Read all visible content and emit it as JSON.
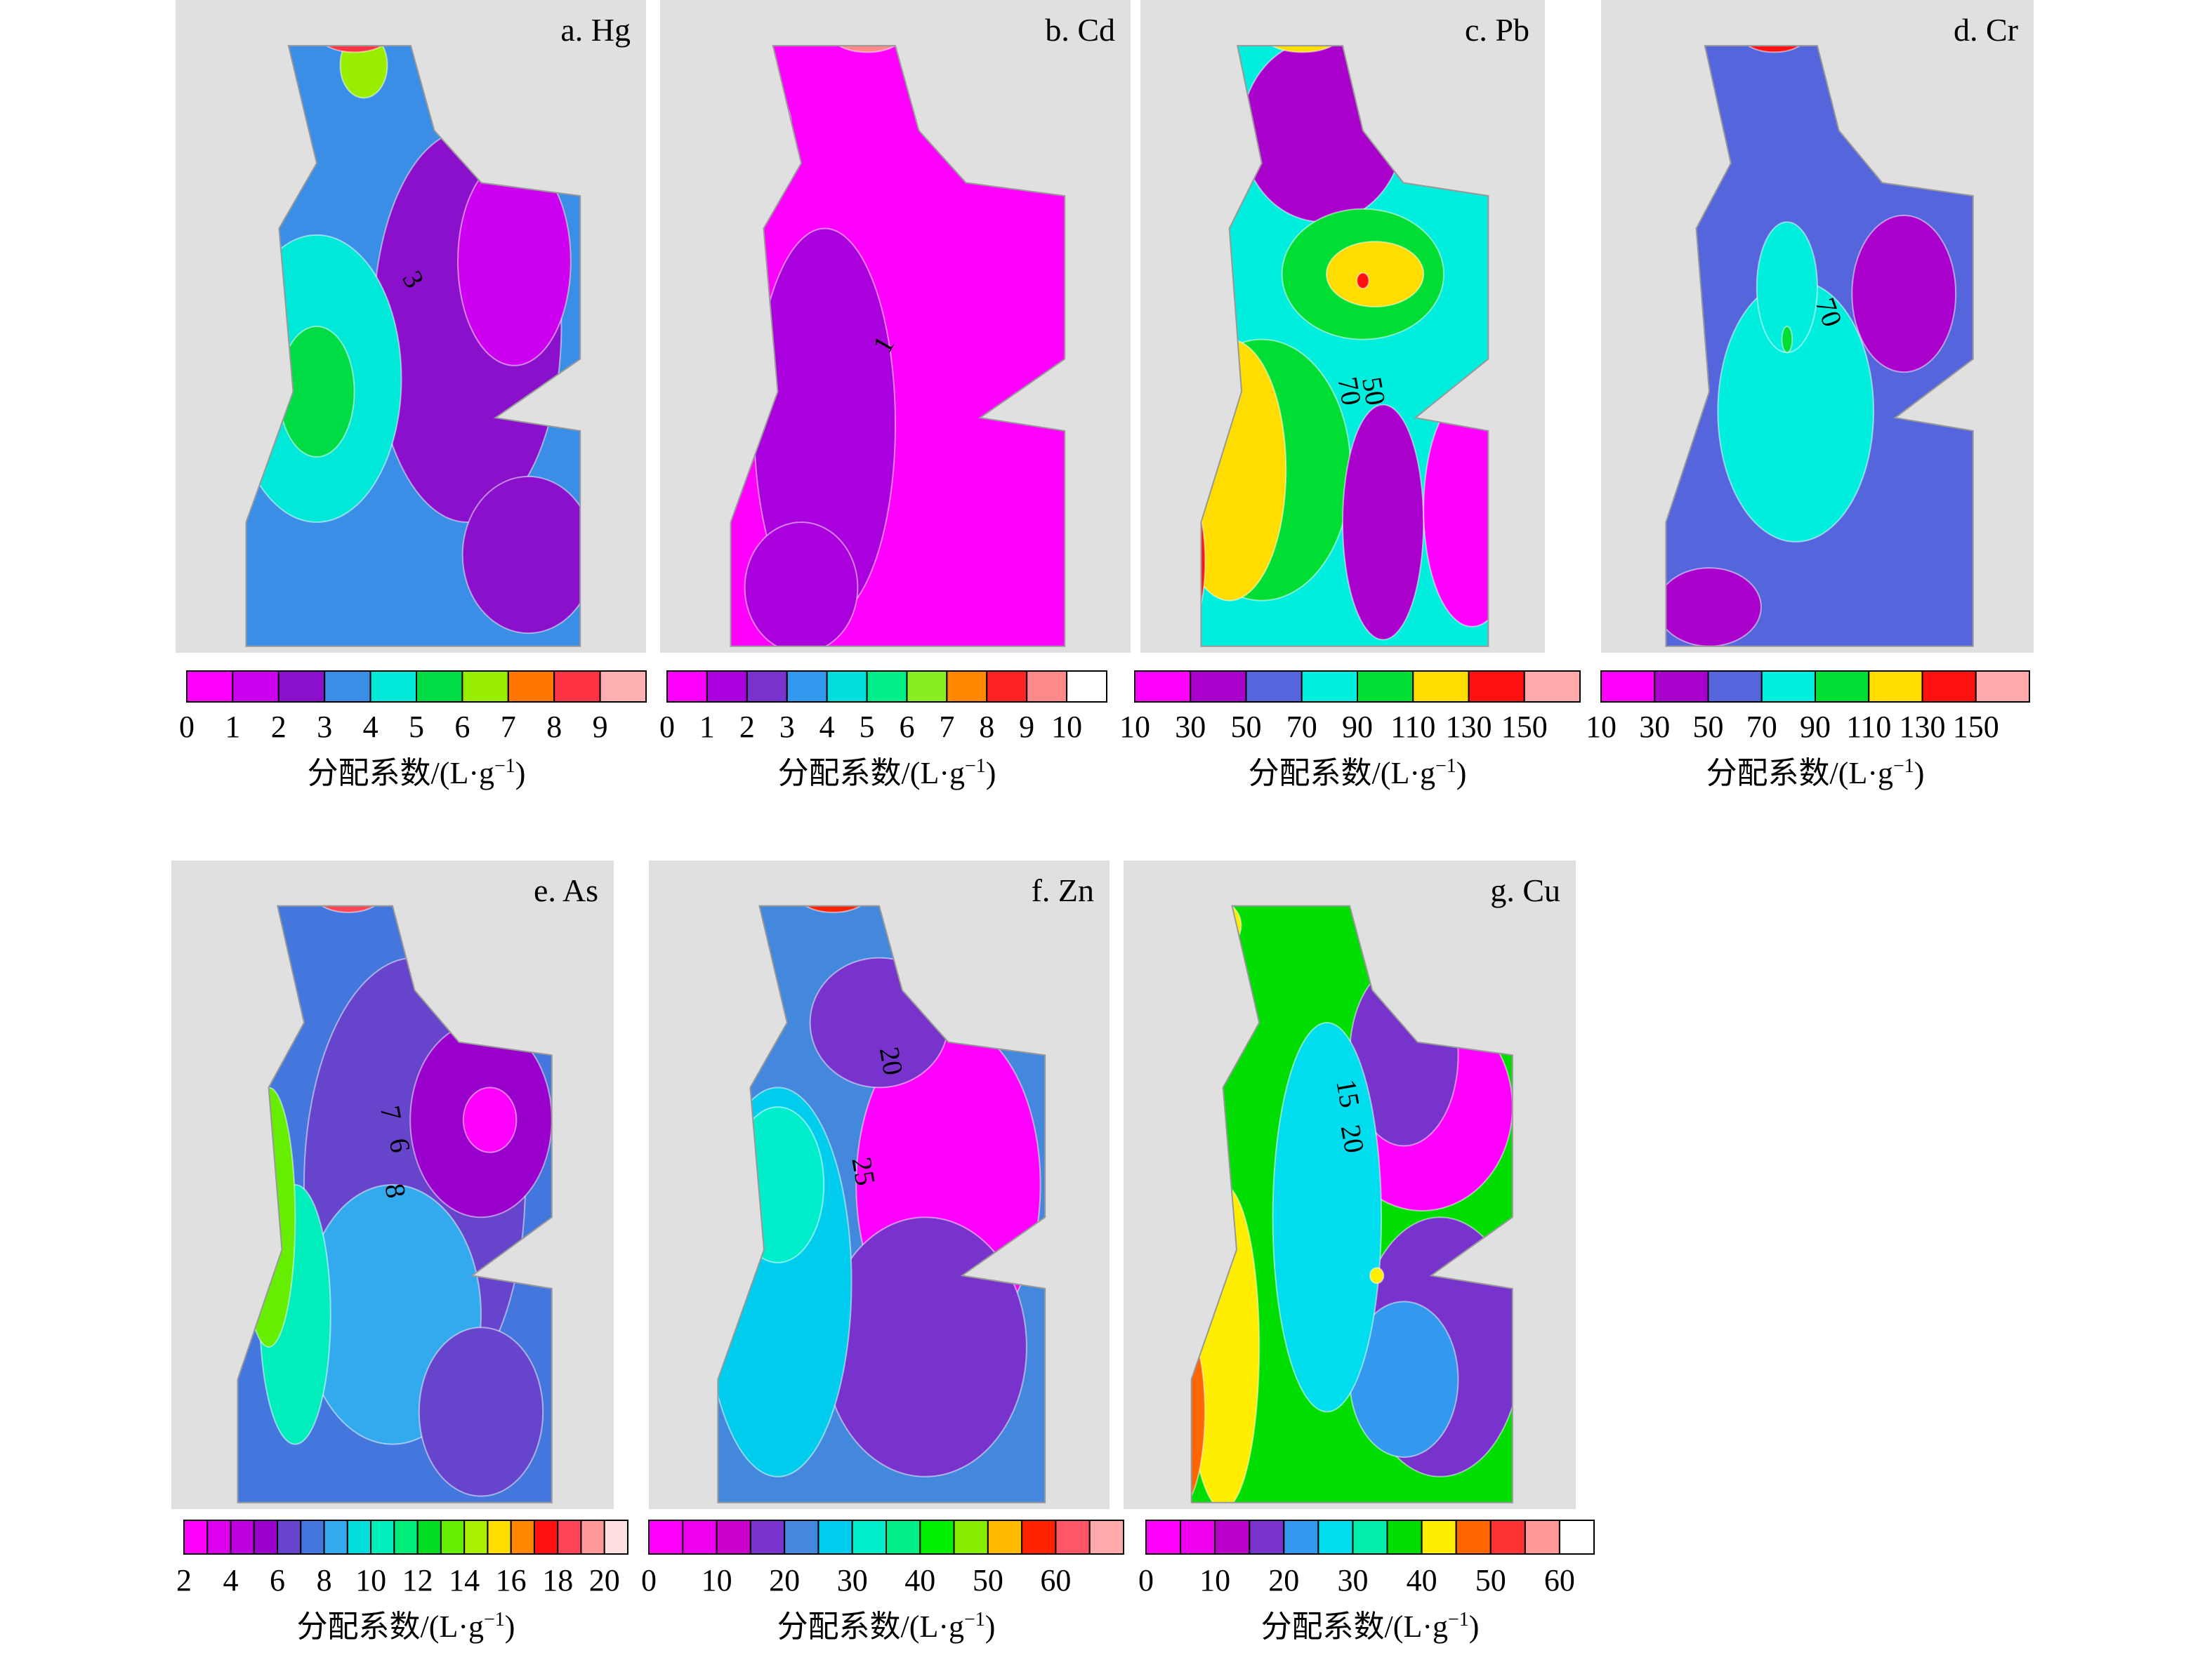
{
  "panels": [
    {
      "title": "a. Hg",
      "colors": [
        "#ff00ff",
        "#cc00ee",
        "#8a10cc",
        "#3a8ee6",
        "#00e8d8",
        "#00dd44",
        "#99ee00",
        "#ff7700",
        "#ff3344",
        "#ffb0b0"
      ],
      "clim": [
        0,
        10
      ],
      "ticks": [
        0,
        1,
        2,
        3,
        4,
        5,
        6,
        7,
        8,
        9
      ],
      "label": "分配系数/(L·g",
      "label_exponent": "−1",
      "label_end": ")",
      "contour_labels": [
        "3"
      ]
    },
    {
      "title": "b. Cd",
      "colors": [
        "#ff00ff",
        "#aa00dd",
        "#7733cc",
        "#3399ee",
        "#00dddd",
        "#00ee88",
        "#88ee22",
        "#ff8800",
        "#ff2222",
        "#ff8888",
        "#ffffff"
      ],
      "clim": [
        0,
        11
      ],
      "ticks": [
        0,
        1,
        2,
        3,
        4,
        5,
        6,
        7,
        8,
        9,
        10
      ],
      "label": "分配系数/(L·g",
      "label_exponent": "−1",
      "label_end": ")",
      "contour_labels": [
        "1"
      ]
    },
    {
      "title": "c. Pb",
      "colors": [
        "#ff00ff",
        "#aa00cc",
        "#5566dd",
        "#00eedd",
        "#00dd33",
        "#ffdd00",
        "#ff1111",
        "#ffaaaa"
      ],
      "clim": [
        10,
        170
      ],
      "ticks": [
        10,
        30,
        50,
        70,
        90,
        110,
        130,
        150
      ],
      "label": "分配系数/(L·g",
      "label_exponent": "−1",
      "label_end": ")",
      "contour_labels": [
        "50",
        "70"
      ]
    },
    {
      "title": "d. Cr",
      "colors": [
        "#ff00ff",
        "#aa00cc",
        "#5566dd",
        "#00eedd",
        "#00dd33",
        "#ffdd00",
        "#ff1111",
        "#ffaaaa"
      ],
      "clim": [
        10,
        170
      ],
      "ticks": [
        10,
        30,
        50,
        70,
        90,
        110,
        130,
        150
      ],
      "label": "分配系数/(L·g",
      "label_exponent": "−1",
      "label_end": ")",
      "contour_labels": [
        "70"
      ]
    },
    {
      "title": "e. As",
      "colors": [
        "#ff00ff",
        "#dd00ee",
        "#bb00dd",
        "#9900cc",
        "#6644cc",
        "#4477dd",
        "#33aaee",
        "#00dddd",
        "#00eebb",
        "#00ee77",
        "#00dd22",
        "#66ee00",
        "#aaee00",
        "#ffdd00",
        "#ff8800",
        "#ff1111",
        "#ff4455",
        "#ff9999",
        "#ffe0e0"
      ],
      "clim": [
        2,
        21
      ],
      "ticks": [
        2,
        4,
        6,
        8,
        10,
        12,
        14,
        16,
        18,
        20
      ],
      "label": "分配系数/(L·g",
      "label_exponent": "−1",
      "label_end": ")",
      "contour_labels": [
        "7",
        "6",
        "8"
      ]
    },
    {
      "title": "f. Zn",
      "colors": [
        "#ff00ff",
        "#ee00ee",
        "#cc00cc",
        "#7733cc",
        "#4488dd",
        "#00ccee",
        "#00eecc",
        "#00ee88",
        "#00ee00",
        "#88ee00",
        "#ffbb00",
        "#ff2200",
        "#ff5566",
        "#ffaaaa"
      ],
      "clim": [
        0,
        70
      ],
      "ticks": [
        0,
        10,
        20,
        30,
        40,
        50,
        60
      ],
      "label": "分配系数/(L·g",
      "label_exponent": "−1",
      "label_end": ")",
      "contour_labels": [
        "20",
        "25"
      ]
    },
    {
      "title": "g. Cu",
      "colors": [
        "#ff00ff",
        "#ee00ee",
        "#bb00cc",
        "#7733cc",
        "#3399ee",
        "#00ddee",
        "#00eeaa",
        "#00dd00",
        "#ffee00",
        "#ff6600",
        "#ff3333",
        "#ff9999",
        "#ffffff"
      ],
      "clim": [
        0,
        65
      ],
      "ticks": [
        0,
        10,
        20,
        30,
        40,
        50,
        60
      ],
      "label": "分配系数/(L·g",
      "label_exponent": "−1",
      "label_end": ")",
      "contour_labels": [
        "15",
        "20"
      ]
    }
  ]
}
